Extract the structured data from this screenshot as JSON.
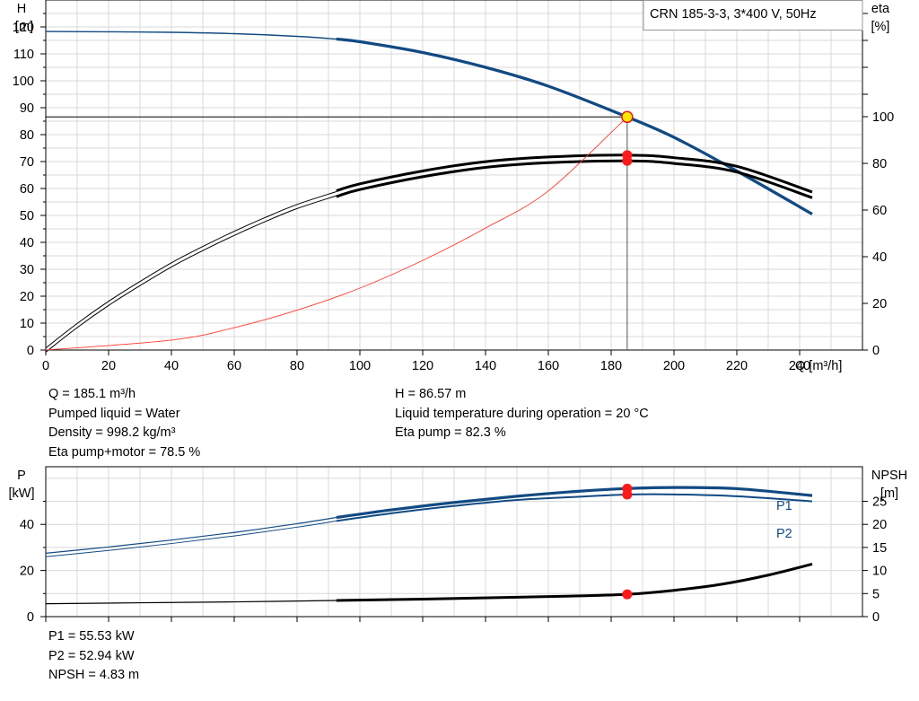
{
  "title_box": "CRN 185-3-3, 3*400 V, 50Hz",
  "colors": {
    "head_curve": "#124a82",
    "eff_curve": "#000000",
    "system_curve": "#ff3b2f",
    "power_curve": "#124a82",
    "npsh_curve": "#000000",
    "duty_marker": "#ff1a1a",
    "duty_point_fill": "#ffe800",
    "grid": "#d8d8d8"
  },
  "top_chart": {
    "h_label": "H",
    "h_unit": "[m]",
    "eta_label": "eta",
    "eta_unit": "[%]",
    "q_label": "Q [m³/h]",
    "x_ticks": [
      "0",
      "20",
      "40",
      "60",
      "80",
      "100",
      "120",
      "140",
      "160",
      "180",
      "200",
      "220",
      "240"
    ],
    "h_ticks": [
      "0",
      "10",
      "20",
      "30",
      "40",
      "50",
      "60",
      "70",
      "80",
      "90",
      "100",
      "110",
      "120"
    ],
    "eta_ticks": [
      "0",
      "20",
      "40",
      "60",
      "80",
      "100"
    ]
  },
  "bottom_chart": {
    "p_label": "P",
    "p_unit": "[kW]",
    "npsh_label": "NPSH",
    "npsh_unit": "[m]",
    "p_ticks": [
      "0",
      "20",
      "40"
    ],
    "npsh_ticks": [
      "0",
      "5",
      "10",
      "15",
      "20",
      "25"
    ],
    "p1_label": "P1",
    "p2_label": "P2"
  },
  "info_left": [
    "Q = 185.1 m³/h",
    "Pumped liquid = Water",
    "Density = 998.2 kg/m³",
    "Eta pump+motor = 78.5 %"
  ],
  "info_right": [
    "H = 86.57 m",
    "Liquid temperature during operation = 20 °C",
    "Eta pump = 82.3 %"
  ],
  "info_bottom": [
    "P1 = 55.53 kW",
    "P2 = 52.94 kW",
    "NPSH = 4.83 m"
  ],
  "chart_data": [
    {
      "type": "line",
      "xlabel": "Q [m³/h]",
      "ylabel": "H [m]",
      "y2label": "eta [%]",
      "xlim": [
        0,
        260
      ],
      "ylim": [
        0,
        130
      ],
      "y2lim": [
        0,
        100
      ],
      "duty_point": {
        "q": 185.1,
        "h": 86.57
      },
      "series": [
        {
          "axis": "H",
          "style": "thin",
          "x": [
            0,
            20,
            40,
            60,
            80,
            92.5
          ],
          "y": [
            118.3,
            118.2,
            118.0,
            117.5,
            116.5,
            115.5
          ]
        },
        {
          "axis": "H",
          "style": "thick",
          "x": [
            92.5,
            100,
            120,
            140,
            160,
            185.1,
            200,
            220,
            244
          ],
          "y": [
            115.5,
            114.5,
            110.5,
            105.0,
            98.0,
            86.57,
            79.0,
            66.5,
            50.5
          ]
        },
        {
          "axis": "eta",
          "style": "double-thin",
          "x": [
            0,
            10,
            20,
            30,
            40,
            50,
            60,
            70,
            80,
            92.5
          ],
          "y": [
            0,
            10.5,
            20.0,
            28.5,
            36.5,
            43.5,
            50.0,
            56.0,
            61.5,
            67.0
          ]
        },
        {
          "axis": "eta",
          "style": "double-thick",
          "x": [
            92.5,
            100,
            120,
            140,
            160,
            185.1,
            200,
            220,
            244
          ],
          "y": [
            67.0,
            70.0,
            75.5,
            79.5,
            81.5,
            82.3,
            81.2,
            77.5,
            66.5
          ]
        },
        {
          "axis": "H",
          "style": "system",
          "x": [
            0,
            40,
            60,
            80,
            100,
            120,
            140,
            160,
            185.1
          ],
          "y": [
            0,
            3.7,
            8.3,
            14.8,
            23.0,
            33.3,
            45.3,
            59.1,
            86.57
          ]
        }
      ]
    },
    {
      "type": "line",
      "xlabel": "Q [m³/h]",
      "ylabel": "P [kW]",
      "y2label": "NPSH [m]",
      "xlim": [
        0,
        260
      ],
      "ylim": [
        0,
        65
      ],
      "y2lim": [
        0,
        32.5
      ],
      "duty_point": {
        "q": 185.1,
        "p1": 55.53,
        "p2": 52.94,
        "npsh": 4.83
      },
      "series": [
        {
          "name": "P1",
          "axis": "P",
          "style": "thin",
          "x": [
            0,
            20,
            40,
            60,
            80,
            92.5
          ],
          "y": [
            27.5,
            30.2,
            33.2,
            36.5,
            40.3,
            43.0
          ]
        },
        {
          "name": "P1",
          "axis": "P",
          "style": "thick",
          "x": [
            92.5,
            110,
            130,
            150,
            170,
            185.1,
            200,
            220,
            244
          ],
          "y": [
            43.0,
            46.3,
            49.5,
            52.2,
            54.4,
            55.53,
            56.0,
            55.5,
            52.5
          ]
        },
        {
          "name": "P2",
          "axis": "P",
          "style": "thin",
          "x": [
            0,
            20,
            40,
            60,
            80,
            92.5
          ],
          "y": [
            26.0,
            28.7,
            31.7,
            35.0,
            38.8,
            41.5
          ]
        },
        {
          "name": "P2",
          "axis": "P",
          "style": "thick",
          "x": [
            92.5,
            110,
            130,
            150,
            170,
            185.1,
            200,
            220,
            244
          ],
          "y": [
            41.5,
            44.8,
            48.0,
            50.6,
            52.0,
            52.94,
            53.0,
            52.2,
            50.0
          ]
        },
        {
          "axis": "NPSH",
          "style": "thin",
          "x": [
            0,
            30,
            60,
            92.5
          ],
          "y": [
            2.8,
            3.0,
            3.2,
            3.5
          ]
        },
        {
          "axis": "NPSH",
          "style": "thick",
          "x": [
            92.5,
            120,
            150,
            170,
            185.1,
            200,
            215,
            230,
            244
          ],
          "y": [
            3.5,
            3.8,
            4.2,
            4.5,
            4.83,
            5.7,
            7.0,
            9.0,
            11.4
          ]
        }
      ]
    }
  ]
}
